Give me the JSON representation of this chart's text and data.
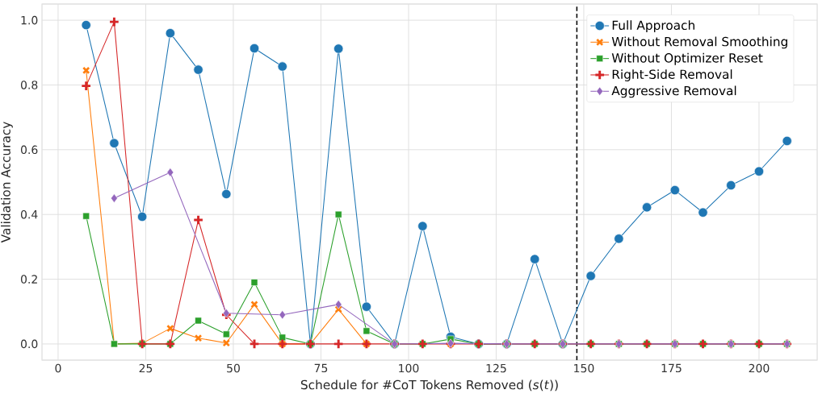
{
  "chart_data": {
    "type": "line",
    "xlabel": "Schedule for #CoT Tokens Removed (*s*(*t*))",
    "ylabel": "Validation Accuracy",
    "x": [
      8,
      16,
      24,
      32,
      40,
      48,
      56,
      64,
      72,
      80,
      88,
      96,
      104,
      112,
      120,
      128,
      136,
      144,
      152,
      160,
      168,
      176,
      184,
      192,
      200,
      208
    ],
    "series": [
      {
        "name": "Full Approach",
        "color": "#1f77b4",
        "marker": "circle",
        "values": [
          0.985,
          0.62,
          0.393,
          0.96,
          0.847,
          0.463,
          0.913,
          0.857,
          0.0,
          0.912,
          0.115,
          0.0,
          0.364,
          0.022,
          0.0,
          0.0,
          0.262,
          0.0,
          0.21,
          0.325,
          0.422,
          0.475,
          0.406,
          0.49,
          0.533,
          0.627
        ]
      },
      {
        "name": "Without Removal Smoothing",
        "color": "#ff7f0e",
        "marker": "cross",
        "values": [
          0.845,
          0.0,
          0.002,
          0.048,
          0.018,
          0.003,
          0.122,
          0.0,
          0.0,
          0.107,
          0.0,
          null,
          null,
          0.0,
          null,
          null,
          null,
          null,
          null,
          null,
          null,
          null,
          null,
          null,
          null,
          null
        ]
      },
      {
        "name": "Without Optimizer Reset",
        "color": "#2ca02c",
        "marker": "square",
        "values": [
          0.395,
          0.0,
          0.0,
          0.0,
          0.072,
          0.03,
          0.19,
          0.02,
          0.0,
          0.4,
          0.04,
          0.0,
          0.0,
          0.015,
          0.0,
          0.0,
          0.0,
          0.0,
          0.0,
          0.0,
          0.0,
          0.0,
          0.0,
          0.0,
          0.0,
          0.0
        ]
      },
      {
        "name": "Right-Side Removal",
        "color": "#d62728",
        "marker": "plus",
        "values": [
          0.797,
          0.995,
          0.0,
          0.0,
          0.383,
          0.09,
          0.0,
          0.0,
          0.0,
          0.0,
          0.0,
          0.0,
          0.0,
          0.0,
          0.0,
          0.0,
          0.0,
          0.0,
          0.0,
          0.0,
          0.0,
          0.0,
          0.0,
          0.0,
          0.0,
          0.0
        ]
      },
      {
        "name": "Aggressive Removal",
        "color": "#9467bd",
        "marker": "diamond",
        "x": [
          16,
          32,
          48,
          64,
          80,
          96,
          112,
          128,
          144,
          160,
          176,
          192,
          208
        ],
        "values": [
          0.45,
          0.53,
          0.095,
          0.09,
          0.122,
          0.0,
          0.002,
          0.0,
          0.0,
          0.0,
          0.0,
          0.0,
          0.0
        ]
      }
    ],
    "xlim": [
      -4.6,
      216.6
    ],
    "ylim": [
      -0.05,
      1.05
    ],
    "xticks": [
      0,
      25,
      50,
      75,
      100,
      125,
      150,
      175,
      200
    ],
    "yticks": [
      {
        "value": 0,
        "label": "0.0"
      },
      {
        "value": 0.2,
        "label": "0.2"
      },
      {
        "value": 0.4,
        "label": "0.4"
      },
      {
        "value": 0.6,
        "label": "0.6"
      },
      {
        "value": 0.8,
        "label": "0.8"
      },
      {
        "value": 1.0,
        "label": "1.0"
      }
    ],
    "ref_lines": [
      {
        "axis": "x",
        "value": 148,
        "color": "#000000",
        "line_style": "dashed"
      }
    ],
    "grid": true,
    "legend": "top right"
  }
}
